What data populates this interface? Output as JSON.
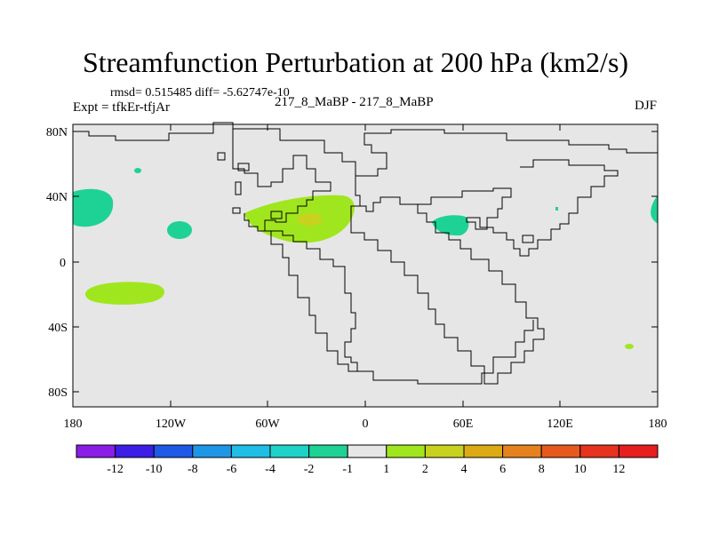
{
  "header": {
    "title": "Streamfunction Perturbation at 200 hPa (km2/s)",
    "stats": "rmsd= 0.515485 diff= -5.62747e-10",
    "experiment": "Expt = tfkEr-tfjAr",
    "case": "217_8_MaBP - 217_8_MaBP",
    "season": "DJF"
  },
  "map": {
    "lat_labels": [
      "80N",
      "40N",
      "0",
      "40S",
      "80S"
    ],
    "lon_labels": [
      "180",
      "120W",
      "60W",
      "0",
      "60E",
      "120E",
      "180"
    ],
    "background_color": "#e6e6e6"
  },
  "colorbar": {
    "labels": [
      "-12",
      "-10",
      "-8",
      "-6",
      "-4",
      "-2",
      "-1",
      "1",
      "2",
      "4",
      "6",
      "8",
      "10",
      "12"
    ],
    "colors": [
      "#8a1ee6",
      "#3c1ee6",
      "#1e5ae6",
      "#1e96e6",
      "#1ebee6",
      "#1ed2c8",
      "#1ed296",
      "#e6e6e6",
      "#a0e61e",
      "#c8d21e",
      "#dcaa14",
      "#e6821e",
      "#e65a1e",
      "#e6321e",
      "#e61e1e"
    ]
  },
  "colors": {
    "positive_anomaly": "#a0e61e",
    "strong_positive": "#c8d21e",
    "negative_anomaly": "#1ed296"
  }
}
